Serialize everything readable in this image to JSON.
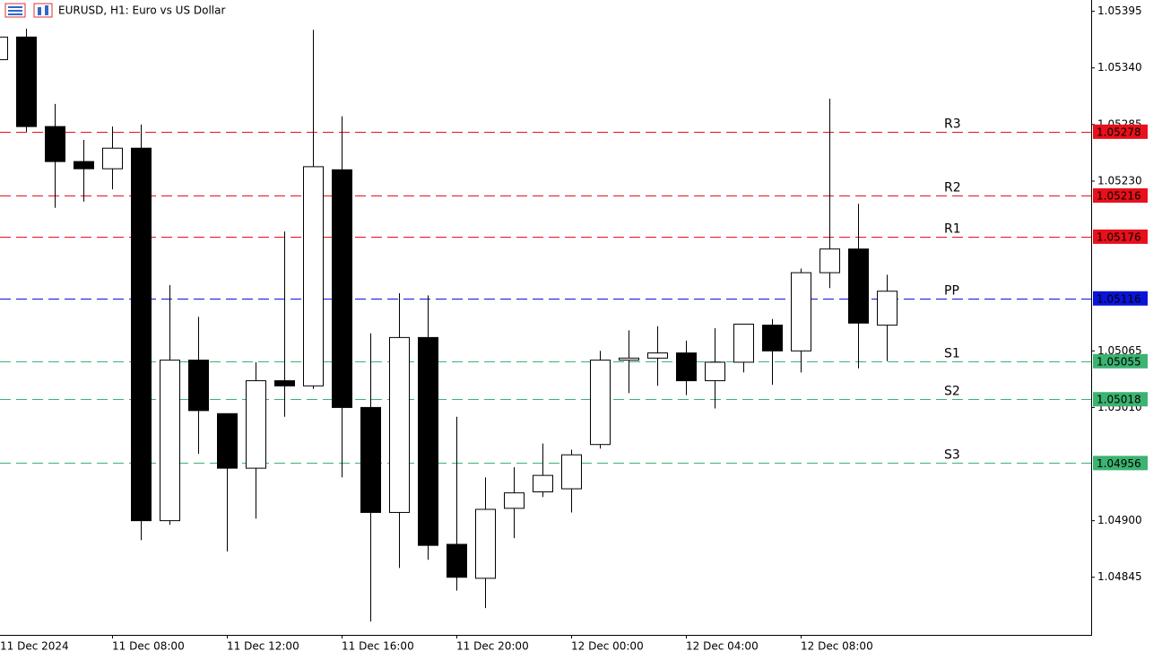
{
  "chart_data": {
    "type": "candlestick",
    "title": "EURUSD, H1:  Euro vs US Dollar",
    "categories": [
      "11 Dec 2024",
      null,
      null,
      null,
      "11 Dec 08:00",
      null,
      null,
      null,
      "11 Dec 12:00",
      null,
      null,
      null,
      "11 Dec 16:00",
      null,
      null,
      null,
      "11 Dec 20:00",
      null,
      null,
      null,
      "12 Dec 00:00",
      null,
      null,
      null,
      "12 Dec 04:00",
      null,
      null,
      null,
      "12 Dec 08:00",
      null,
      null,
      null
    ],
    "open": [
      1.05348,
      1.0537,
      1.05283,
      1.05249,
      1.05242,
      1.05262,
      1.049,
      1.05056,
      1.05004,
      1.04951,
      1.05036,
      1.05031,
      1.05241,
      1.0501,
      1.04908,
      1.05078,
      1.04877,
      1.04844,
      1.04912,
      1.04928,
      1.04931,
      1.04974,
      1.05056,
      1.05058,
      1.05063,
      1.05036,
      1.05054,
      1.0509,
      1.05065,
      1.05141,
      1.05164,
      1.0509
    ],
    "high": [
      1.05372,
      1.05378,
      1.05305,
      1.0527,
      1.05283,
      1.05285,
      1.05129,
      1.05098,
      1.05004,
      1.05054,
      1.05181,
      1.05377,
      1.05293,
      1.05082,
      1.05121,
      1.05119,
      1.05001,
      1.04942,
      1.04952,
      1.04975,
      1.04969,
      1.05065,
      1.05085,
      1.05089,
      1.05075,
      1.05087,
      1.05091,
      1.05096,
      1.05145,
      1.0531,
      1.05208,
      1.05139
    ],
    "low": [
      1.05348,
      1.05278,
      1.05204,
      1.0521,
      1.05222,
      1.04881,
      1.04896,
      1.04965,
      1.0487,
      1.04902,
      1.05001,
      1.05028,
      1.04942,
      1.04802,
      1.04854,
      1.04862,
      1.04832,
      1.04815,
      1.04883,
      1.04923,
      1.04908,
      1.0497,
      1.05024,
      1.05031,
      1.05022,
      1.05009,
      1.05044,
      1.05032,
      1.05044,
      1.05126,
      1.05048,
      1.05055
    ],
    "close": [
      1.0537,
      1.05283,
      1.05249,
      1.05242,
      1.05262,
      1.049,
      1.05056,
      1.05007,
      1.04951,
      1.05036,
      1.05031,
      1.05244,
      1.0501,
      1.04908,
      1.05078,
      1.04876,
      1.04845,
      1.04911,
      1.04927,
      1.04944,
      1.04964,
      1.05056,
      1.05058,
      1.05063,
      1.05036,
      1.05054,
      1.05091,
      1.05065,
      1.05141,
      1.05164,
      1.05092,
      1.05123
    ],
    "up_color": "#ffffff",
    "down_color": "#000000",
    "ylim": [
      1.04789,
      1.05406
    ],
    "yticks": [
      1.05395,
      {
        "value": 1.0534,
        "label": "1.05340"
      },
      1.05285,
      {
        "value": 1.0523,
        "label": "1.05230"
      },
      1.05065,
      {
        "value": 1.0501,
        "label": "1.05010"
      },
      {
        "value": 1.049,
        "label": "1.04900"
      },
      1.04845
    ],
    "levels": [
      {
        "name": "R3",
        "value": 1.05278,
        "color": "#e8101a"
      },
      {
        "name": "R2",
        "value": 1.05216,
        "color": "#e8101a"
      },
      {
        "name": "R1",
        "value": 1.05176,
        "color": "#e8101a"
      },
      {
        "name": "PP",
        "value": 1.05116,
        "color": "#0a14d8"
      },
      {
        "name": "S1",
        "value": 1.05055,
        "color": "#3cb371"
      },
      {
        "name": "S2",
        "value": 1.05018,
        "color": "#3cb371"
      },
      {
        "name": "S3",
        "value": 1.04956,
        "color": "#3cb371"
      }
    ]
  }
}
